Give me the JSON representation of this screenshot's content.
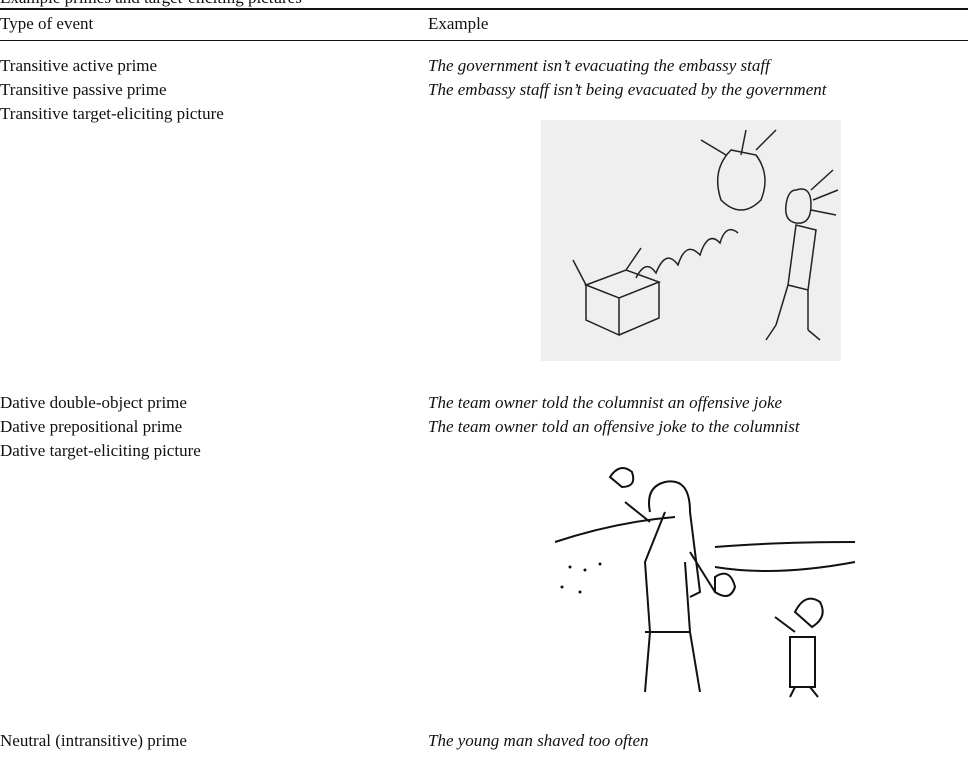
{
  "caption": "Example primes and target-eliciting pictures",
  "table": {
    "header": [
      "Type of event",
      "Example"
    ],
    "rows": [
      {
        "type": "Transitive active prime",
        "example": "The government isn’t evacuating the embassy staff"
      },
      {
        "type": "Transitive passive prime",
        "example": "The embassy staff isn’t being evacuated by the government"
      },
      {
        "type": "Transitive target-eliciting picture"
      },
      {
        "type": "Dative double-object prime",
        "example": "The team owner told the columnist an offensive joke"
      },
      {
        "type": "Dative prepositional prime",
        "example": "The team owner told an offensive joke to the columnist"
      },
      {
        "type": "Dative target-eliciting picture"
      },
      {
        "type": "Neutral (intransitive) prime",
        "example": "The young man shaved too often"
      }
    ]
  }
}
